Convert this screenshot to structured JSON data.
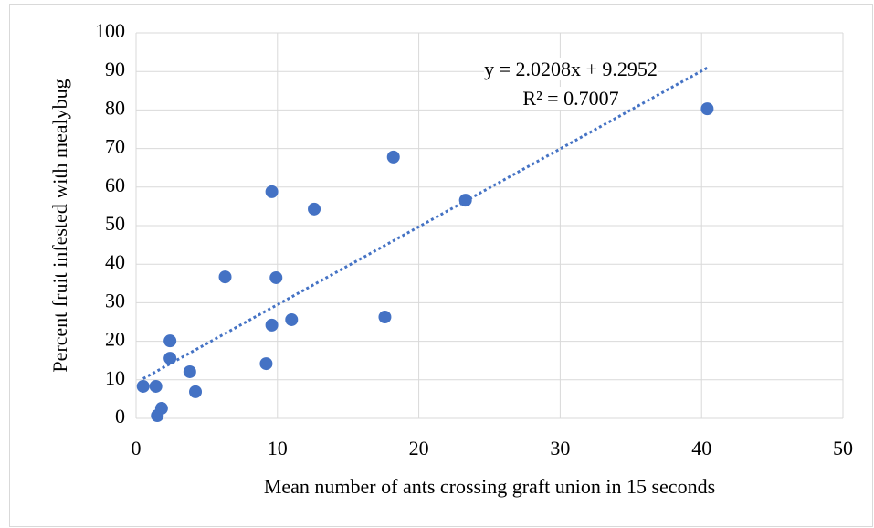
{
  "chart_data": {
    "type": "scatter",
    "x_label": "Mean number of ants crossing graft union in 15 seconds",
    "y_label": "Percent fruit infested with mealybug",
    "series": [
      {
        "color": "#4472c4",
        "x": [
          0.5,
          1.4,
          1.5,
          1.8,
          2.4,
          2.4,
          3.8,
          4.2,
          6.3,
          9.2,
          9.6,
          9.6,
          9.9,
          11.0,
          12.6,
          17.6,
          18.2,
          23.3,
          40.4
        ],
        "values": [
          8.3,
          8.3,
          0.7,
          2.6,
          20.1,
          15.6,
          12.1,
          6.9,
          36.7,
          14.2,
          24.2,
          58.8,
          36.5,
          25.6,
          54.3,
          26.3,
          67.8,
          56.6,
          80.3
        ]
      }
    ],
    "trendline": {
      "slope": 2.0208,
      "intercept": 9.2952,
      "color": "#4472c4"
    },
    "annotations": [
      "y = 2.0208x + 9.2952",
      "R² = 0.7007"
    ],
    "xlim": [
      0,
      50
    ],
    "xticks": [
      0,
      10,
      20,
      30,
      40,
      50
    ],
    "ylim": [
      0,
      100
    ],
    "yticks": [
      0,
      10,
      20,
      30,
      40,
      50,
      60,
      70,
      80,
      90,
      100
    ],
    "grid": true
  }
}
